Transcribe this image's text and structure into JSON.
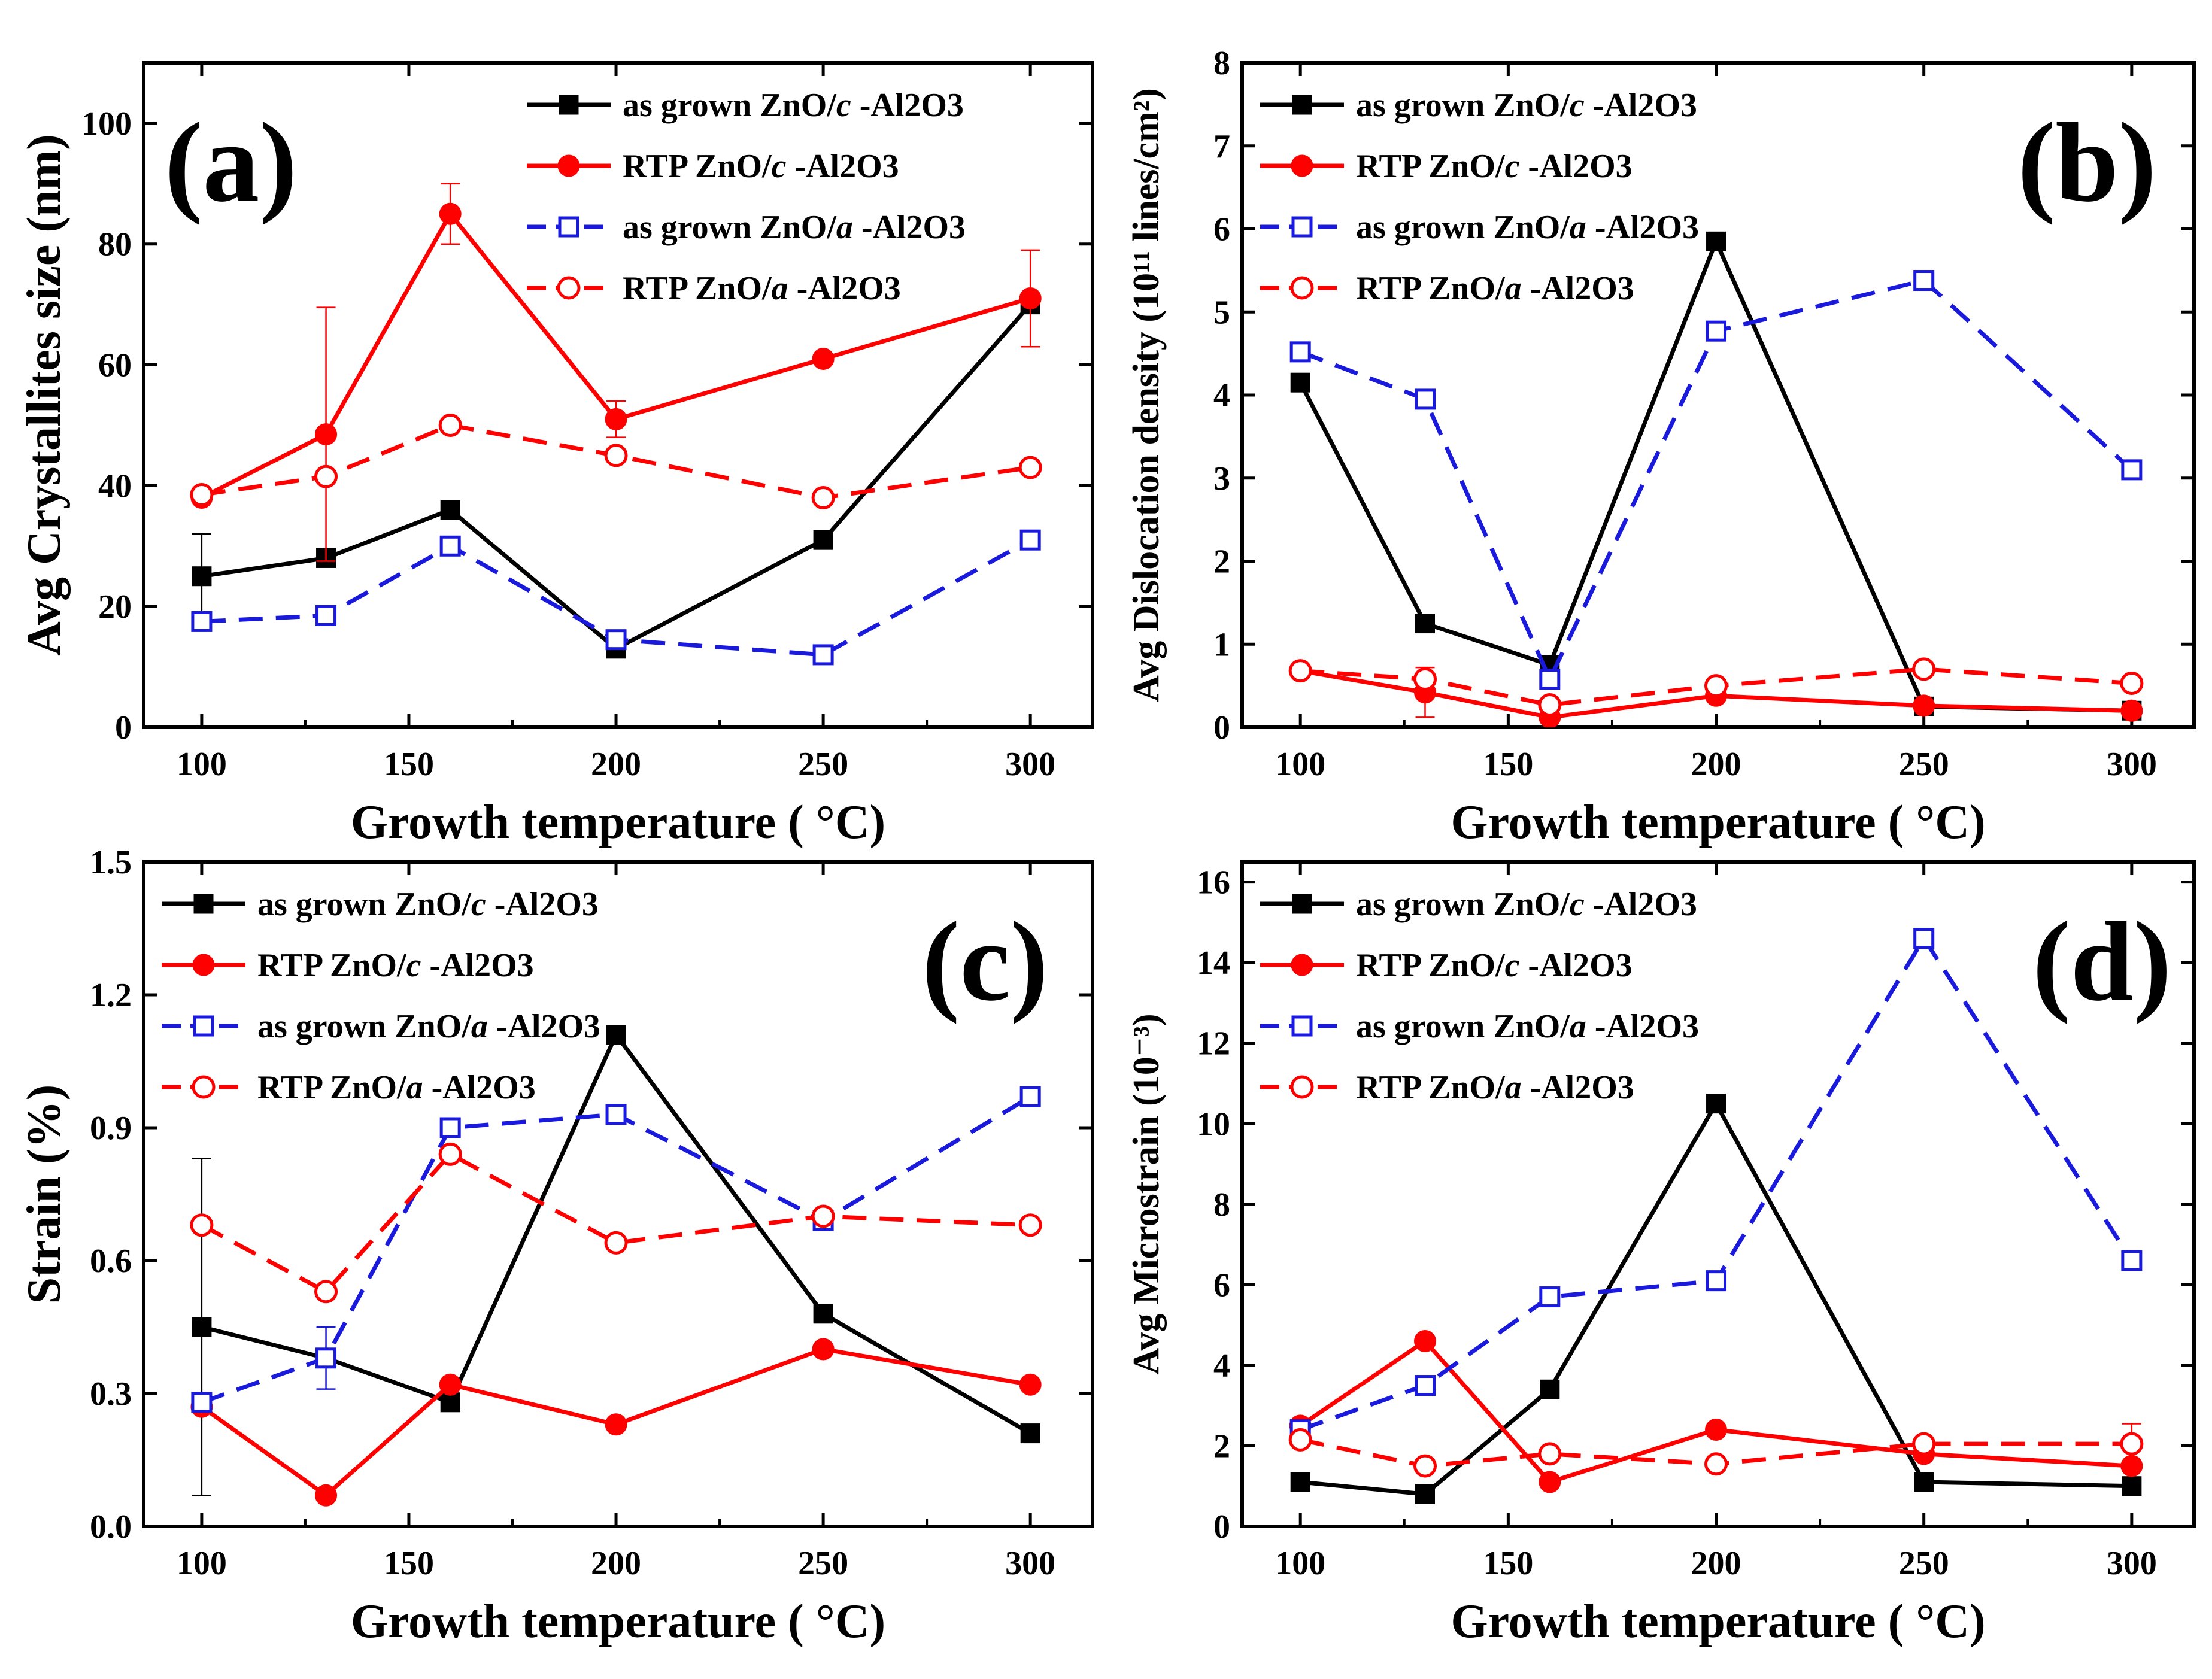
{
  "figure": {
    "series_styles": [
      {
        "key": "asgrown_c",
        "color": "#000000",
        "marker": "filled-square",
        "line": "solid"
      },
      {
        "key": "rtp_c",
        "color": "#ff0000",
        "marker": "filled-circle",
        "line": "solid"
      },
      {
        "key": "asgrown_a",
        "color": "#1a1adc",
        "marker": "open-square",
        "line": "dashed"
      },
      {
        "key": "rtp_a",
        "color": "#ff0000",
        "marker": "open-circle",
        "line": "dashed"
      }
    ]
  },
  "chart_data": [
    {
      "type": "line",
      "panel_label": "(a)",
      "legend_position": "top-right",
      "xlabel": "Growth temperature ( °C)",
      "ylabel": "Avg Crystallites size (nm)",
      "xlim": [
        86,
        315
      ],
      "ylim": [
        0,
        110
      ],
      "xticks": [
        100,
        150,
        200,
        250,
        300
      ],
      "yticks": [
        0,
        20,
        40,
        60,
        80,
        100
      ],
      "x": [
        100,
        130,
        160,
        200,
        250,
        300
      ],
      "series": [
        {
          "key": "asgrown_c",
          "name_prefix": "as grown ZnO/",
          "name_italic": "c",
          "name_suffix": " -Al2O3",
          "values": [
            25,
            28,
            36,
            13,
            31,
            70
          ],
          "err": [
            7,
            0,
            0,
            0,
            0,
            0
          ]
        },
        {
          "key": "rtp_c",
          "name_prefix": "RTP ZnO/",
          "name_italic": "c",
          "name_suffix": " -Al2O3",
          "values": [
            38,
            48.5,
            85,
            51,
            61,
            71
          ],
          "err": [
            0,
            21,
            5,
            3,
            0,
            8
          ]
        },
        {
          "key": "asgrown_a",
          "name_prefix": "as grown ZnO/",
          "name_italic": "a",
          "name_suffix": " -Al2O3",
          "values": [
            17.5,
            18.5,
            30,
            14.5,
            12,
            31
          ],
          "err": [
            0,
            0,
            0,
            0,
            0,
            0
          ]
        },
        {
          "key": "rtp_a",
          "name_prefix": "RTP ZnO/",
          "name_italic": "a",
          "name_suffix": " -Al2O3",
          "values": [
            38.5,
            41.5,
            50,
            45,
            38,
            43
          ],
          "err": [
            0,
            0,
            0,
            0,
            0,
            0
          ]
        }
      ]
    },
    {
      "type": "line",
      "panel_label": "(b)",
      "legend_position": "top-left",
      "xlabel": "Growth temperature ( °C)",
      "ylabel": "Avg Dislocation density (10¹¹ lines/cm²)",
      "xlim": [
        86,
        315
      ],
      "ylim": [
        0,
        8
      ],
      "xticks": [
        100,
        150,
        200,
        250,
        300
      ],
      "yticks": [
        0,
        1,
        2,
        3,
        4,
        5,
        6,
        7,
        8
      ],
      "x": [
        100,
        130,
        160,
        200,
        250,
        300
      ],
      "series": [
        {
          "key": "asgrown_c",
          "name_prefix": "as grown ZnO/",
          "name_italic": "c",
          "name_suffix": " -Al2O3",
          "values": [
            4.15,
            1.25,
            0.75,
            5.85,
            0.25,
            0.2
          ],
          "err": [
            0,
            0,
            0,
            0,
            0,
            0
          ]
        },
        {
          "key": "rtp_c",
          "name_prefix": "RTP ZnO/",
          "name_italic": "c",
          "name_suffix": " -Al2O3",
          "values": [
            0.68,
            0.42,
            0.12,
            0.38,
            0.26,
            0.2
          ],
          "err": [
            0,
            0.3,
            0,
            0,
            0,
            0
          ]
        },
        {
          "key": "asgrown_a",
          "name_prefix": "as grown ZnO/",
          "name_italic": "a",
          "name_suffix": " -Al2O3",
          "values": [
            4.52,
            3.95,
            0.58,
            4.77,
            5.38,
            3.1
          ],
          "err": [
            0,
            0,
            0,
            0,
            0,
            0
          ]
        },
        {
          "key": "rtp_a",
          "name_prefix": "RTP ZnO/",
          "name_italic": "a",
          "name_suffix": " -Al2O3",
          "values": [
            0.68,
            0.58,
            0.27,
            0.5,
            0.7,
            0.53
          ],
          "err": [
            0,
            0,
            0,
            0,
            0,
            0
          ]
        }
      ]
    },
    {
      "type": "line",
      "panel_label": "(c)",
      "legend_position": "top-left",
      "xlabel": "Growth temperature ( °C)",
      "ylabel": "Strain (%)",
      "xlim": [
        86,
        315
      ],
      "ylim": [
        0,
        1.5
      ],
      "xticks": [
        100,
        150,
        200,
        250,
        300
      ],
      "yticks": [
        0,
        0.3,
        0.6,
        0.9,
        1.2,
        1.5
      ],
      "ytick_labels": [
        "0.0",
        "0.3",
        "0.6",
        "0.9",
        "1.2",
        "1.5"
      ],
      "x": [
        100,
        130,
        160,
        200,
        250,
        300
      ],
      "series": [
        {
          "key": "asgrown_c",
          "name_prefix": "as grown ZnO/",
          "name_italic": "c",
          "name_suffix": " -Al2O3",
          "values": [
            0.45,
            0.38,
            0.28,
            1.11,
            0.48,
            0.21
          ],
          "err": [
            0.38,
            0,
            0,
            0,
            0,
            0
          ]
        },
        {
          "key": "rtp_c",
          "name_prefix": "RTP ZnO/",
          "name_italic": "c",
          "name_suffix": " -Al2O3",
          "values": [
            0.27,
            0.07,
            0.32,
            0.23,
            0.4,
            0.32
          ],
          "err": [
            0,
            0,
            0,
            0,
            0,
            0
          ]
        },
        {
          "key": "asgrown_a",
          "name_prefix": "as grown ZnO/",
          "name_italic": "a",
          "name_suffix": " -Al2O3",
          "values": [
            0.28,
            0.38,
            0.9,
            0.93,
            0.69,
            0.97
          ],
          "err": [
            0,
            0.07,
            0,
            0,
            0,
            0
          ]
        },
        {
          "key": "rtp_a",
          "name_prefix": "RTP ZnO/",
          "name_italic": "a",
          "name_suffix": " -Al2O3",
          "values": [
            0.68,
            0.53,
            0.84,
            0.64,
            0.7,
            0.68
          ],
          "err": [
            0,
            0,
            0,
            0,
            0,
            0
          ]
        }
      ]
    },
    {
      "type": "line",
      "panel_label": "(d)",
      "legend_position": "top-left",
      "xlabel": "Growth temperature ( °C)",
      "ylabel": "Avg Microstrain (10⁻³)",
      "xlim": [
        86,
        315
      ],
      "ylim": [
        0,
        16.5
      ],
      "xticks": [
        100,
        150,
        200,
        250,
        300
      ],
      "yticks": [
        0,
        2,
        4,
        6,
        8,
        10,
        12,
        14,
        16
      ],
      "x": [
        100,
        130,
        160,
        200,
        250,
        300
      ],
      "series": [
        {
          "key": "asgrown_c",
          "name_prefix": "as grown ZnO/",
          "name_italic": "c",
          "name_suffix": " -Al2O3",
          "values": [
            1.1,
            0.8,
            3.4,
            10.5,
            1.1,
            1.0
          ],
          "err": [
            0,
            0,
            0,
            0,
            0,
            0
          ]
        },
        {
          "key": "rtp_c",
          "name_prefix": "RTP ZnO/",
          "name_italic": "c",
          "name_suffix": " -Al2O3",
          "values": [
            2.5,
            4.6,
            1.1,
            2.4,
            1.8,
            1.5
          ],
          "err": [
            0,
            0,
            0,
            0,
            0,
            0
          ]
        },
        {
          "key": "asgrown_a",
          "name_prefix": "as grown ZnO/",
          "name_italic": "a",
          "name_suffix": " -Al2O3",
          "values": [
            2.4,
            3.5,
            5.7,
            6.1,
            14.6,
            6.6
          ],
          "err": [
            0,
            0,
            0,
            0,
            0,
            0
          ]
        },
        {
          "key": "rtp_a",
          "name_prefix": "RTP ZnO/",
          "name_italic": "a",
          "name_suffix": " -Al2O3",
          "values": [
            2.15,
            1.5,
            1.8,
            1.55,
            2.05,
            2.05
          ],
          "err": [
            0,
            0,
            0,
            0,
            0,
            0.5
          ]
        }
      ]
    }
  ]
}
